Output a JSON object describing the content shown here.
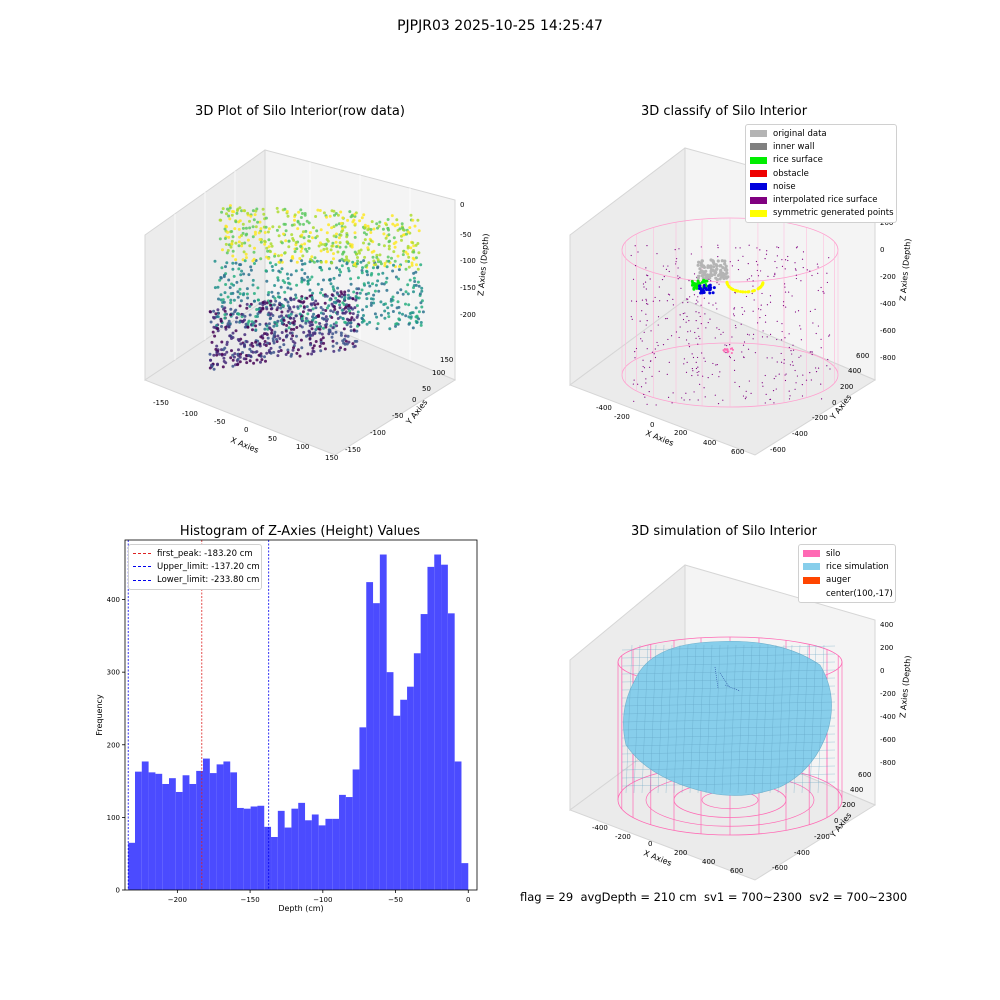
{
  "figure": {
    "title": "PJPJR03 2025-10-25 14:25:47",
    "status_line": "flag = 29  avgDepth = 210 cm  sv1 = 700~2300  sv2 = 700~2300"
  },
  "panels": {
    "raw": {
      "title": "3D Plot of Silo Interior(row data)",
      "xlabel": "X Axies",
      "ylabel": "Y Axies",
      "zlabel": "Z Axies (Depth)",
      "xticks": [
        "-150",
        "-100",
        "-50",
        "0",
        "50",
        "100",
        "150"
      ],
      "yticks": [
        "-150",
        "-100",
        "-50",
        "0",
        "50",
        "100",
        "150"
      ],
      "zticks": [
        "0",
        "-50",
        "-100",
        "-150",
        "-200"
      ]
    },
    "classify": {
      "title": "3D classify of Silo Interior",
      "xlabel": "X Axies",
      "ylabel": "Y Axies",
      "zlabel": "Z Axies (Depth)",
      "xticks": [
        "-400",
        "-200",
        "0",
        "200",
        "400",
        "600"
      ],
      "yticks": [
        "-600",
        "-400",
        "-200",
        "0",
        "200",
        "400",
        "600"
      ],
      "zticks": [
        "200",
        "0",
        "-200",
        "-400",
        "-600",
        "-800"
      ],
      "legend": [
        {
          "label": "original data",
          "color": "#b4b4b4"
        },
        {
          "label": "inner wall",
          "color": "#808080"
        },
        {
          "label": "rice surface",
          "color": "#00ee00"
        },
        {
          "label": "obstacle",
          "color": "#ee0000"
        },
        {
          "label": "noise",
          "color": "#0000dd"
        },
        {
          "label": "interpolated rice surface",
          "color": "#800080"
        },
        {
          "label": "symmetric generated points",
          "color": "#ffff00"
        }
      ]
    },
    "simulation": {
      "title": "3D simulation of Silo Interior",
      "xlabel": "X Axies",
      "ylabel": "Y Axies",
      "zlabel": "Z Axies (Depth)",
      "xticks": [
        "-400",
        "-200",
        "0",
        "200",
        "400",
        "600"
      ],
      "yticks": [
        "-600",
        "-400",
        "-200",
        "0",
        "200",
        "400",
        "600"
      ],
      "zticks": [
        "400",
        "200",
        "0",
        "-200",
        "-400",
        "-600",
        "-800"
      ],
      "legend": [
        {
          "label": "silo",
          "color": "#ff69b4"
        },
        {
          "label": "rice simulation",
          "color": "#87ceeb"
        },
        {
          "label": "auger",
          "color": "#ff4500"
        },
        {
          "label": "center(100,-17)",
          "color": "#ffffff"
        }
      ]
    }
  },
  "chart_data": {
    "type": "bar",
    "title": "Histogram of Z-Axies (Height) Values",
    "xlabel": "Depth (cm)",
    "ylabel": "Frequency",
    "xlim": [
      -236,
      6
    ],
    "ylim": [
      0,
      482
    ],
    "xticks": [
      -200,
      -150,
      -100,
      -50,
      0
    ],
    "yticks": [
      0,
      100,
      200,
      300,
      400
    ],
    "bin_start": -233.8,
    "bin_width": 4.676,
    "bar_color": "#4b4bff",
    "values": [
      65,
      163,
      177,
      162,
      160,
      146,
      154,
      135,
      158,
      146,
      164,
      181,
      161,
      173,
      177,
      162,
      113,
      112,
      115,
      116,
      87,
      73,
      109,
      86,
      112,
      120,
      96,
      104,
      89,
      98,
      98,
      131,
      128,
      166,
      224,
      424,
      395,
      462,
      300,
      240,
      262,
      280,
      326,
      380,
      445,
      462,
      448,
      381,
      177,
      37
    ],
    "vlines": [
      {
        "label": "first_peak: -183.20 cm",
        "x": -183.2,
        "color": "#dd2222"
      },
      {
        "label": "Upper_limit: -137.20 cm",
        "x": -137.2,
        "color": "#0000ee"
      },
      {
        "label": "Lower_limit: -233.80 cm",
        "x": -233.8,
        "color": "#0000ee"
      }
    ]
  }
}
